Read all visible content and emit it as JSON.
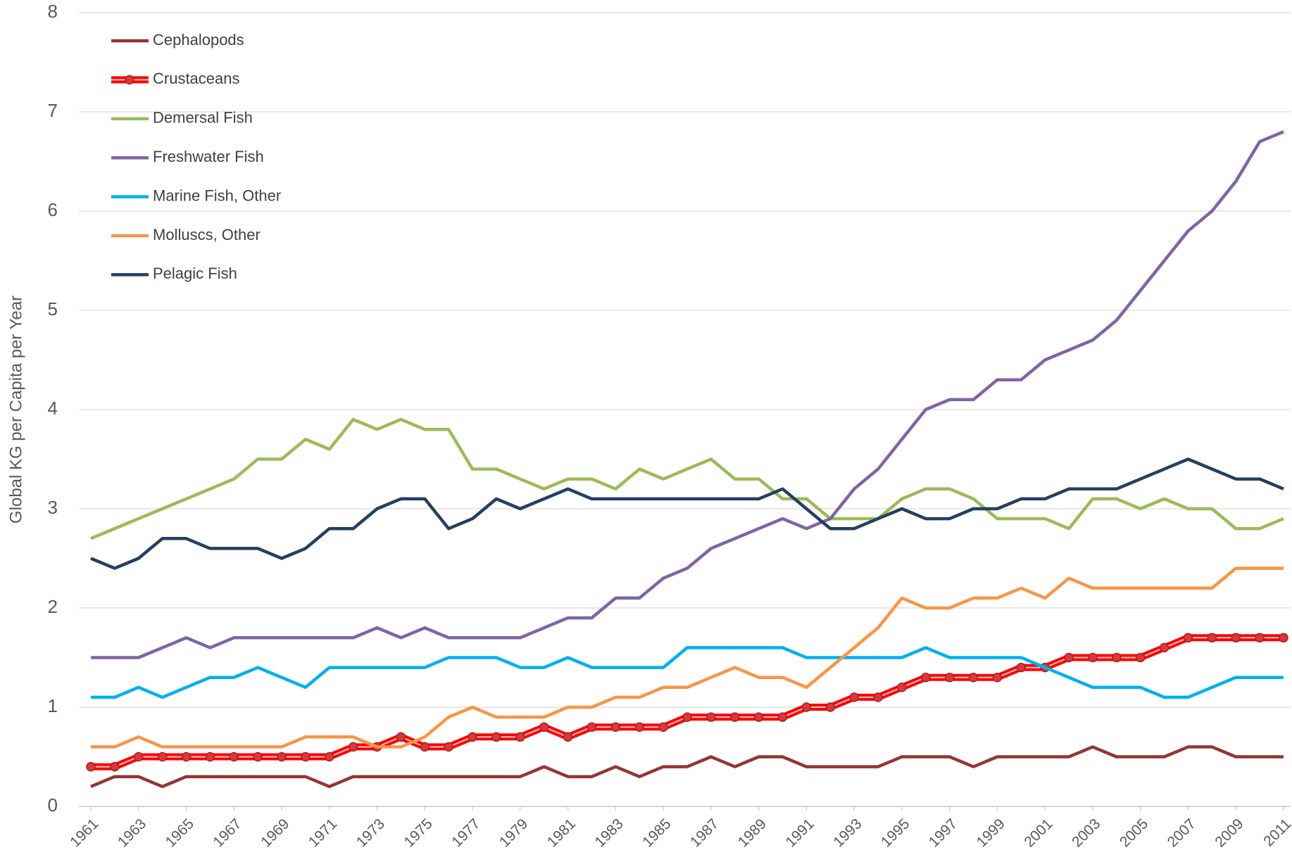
{
  "chart_data": {
    "type": "line",
    "ylabel": "Global KG per Capita per Year",
    "x": [
      1961,
      1962,
      1963,
      1964,
      1965,
      1966,
      1967,
      1968,
      1969,
      1970,
      1971,
      1972,
      1973,
      1974,
      1975,
      1976,
      1977,
      1978,
      1979,
      1980,
      1981,
      1982,
      1983,
      1984,
      1985,
      1986,
      1987,
      1988,
      1989,
      1990,
      1991,
      1992,
      1993,
      1994,
      1995,
      1996,
      1997,
      1998,
      1999,
      2000,
      2001,
      2002,
      2003,
      2004,
      2005,
      2006,
      2007,
      2008,
      2009,
      2010,
      2011
    ],
    "xlim": [
      1961,
      2011
    ],
    "xticks": [
      1961,
      1963,
      1965,
      1967,
      1969,
      1971,
      1973,
      1975,
      1977,
      1979,
      1981,
      1983,
      1985,
      1987,
      1989,
      1991,
      1993,
      1995,
      1997,
      1999,
      2001,
      2003,
      2005,
      2007,
      2009,
      2011
    ],
    "ylim": [
      0,
      8
    ],
    "yticks": [
      0,
      1,
      2,
      3,
      4,
      5,
      6,
      7,
      8
    ],
    "grid": true,
    "legend": "top-left",
    "series": [
      {
        "name": "Cephalopods",
        "color": "#943634",
        "values": [
          0.2,
          0.3,
          0.3,
          0.2,
          0.3,
          0.3,
          0.3,
          0.3,
          0.3,
          0.3,
          0.2,
          0.3,
          0.3,
          0.3,
          0.3,
          0.3,
          0.3,
          0.3,
          0.3,
          0.4,
          0.3,
          0.3,
          0.4,
          0.3,
          0.4,
          0.4,
          0.5,
          0.4,
          0.5,
          0.5,
          0.4,
          0.4,
          0.4,
          0.4,
          0.5,
          0.5,
          0.5,
          0.4,
          0.5,
          0.5,
          0.5,
          0.5,
          0.6,
          0.5,
          0.5,
          0.5,
          0.6,
          0.6,
          0.5,
          0.5,
          0.5
        ]
      },
      {
        "name": "Crustaceans",
        "color": "#ff0000",
        "marker": "circle",
        "values": [
          0.4,
          0.4,
          0.5,
          0.5,
          0.5,
          0.5,
          0.5,
          0.5,
          0.5,
          0.5,
          0.5,
          0.6,
          0.6,
          0.7,
          0.6,
          0.6,
          0.7,
          0.7,
          0.7,
          0.8,
          0.7,
          0.8,
          0.8,
          0.8,
          0.8,
          0.9,
          0.9,
          0.9,
          0.9,
          0.9,
          1.0,
          1.0,
          1.1,
          1.1,
          1.2,
          1.3,
          1.3,
          1.3,
          1.3,
          1.4,
          1.4,
          1.5,
          1.5,
          1.5,
          1.5,
          1.6,
          1.7,
          1.7,
          1.7,
          1.7,
          1.7
        ]
      },
      {
        "name": "Demersal Fish",
        "color": "#9bbb59",
        "values": [
          2.7,
          2.8,
          2.9,
          3.0,
          3.1,
          3.2,
          3.3,
          3.5,
          3.5,
          3.7,
          3.6,
          3.9,
          3.8,
          3.9,
          3.8,
          3.8,
          3.4,
          3.4,
          3.3,
          3.2,
          3.3,
          3.3,
          3.2,
          3.4,
          3.3,
          3.4,
          3.5,
          3.3,
          3.3,
          3.1,
          3.1,
          2.9,
          2.9,
          2.9,
          3.1,
          3.2,
          3.2,
          3.1,
          2.9,
          2.9,
          2.9,
          2.8,
          3.1,
          3.1,
          3.0,
          3.1,
          3.0,
          3.0,
          2.8,
          2.8,
          2.9
        ]
      },
      {
        "name": "Freshwater Fish",
        "color": "#8064a2",
        "values": [
          1.5,
          1.5,
          1.5,
          1.6,
          1.7,
          1.6,
          1.7,
          1.7,
          1.7,
          1.7,
          1.7,
          1.7,
          1.8,
          1.7,
          1.8,
          1.7,
          1.7,
          1.7,
          1.7,
          1.8,
          1.9,
          1.9,
          2.1,
          2.1,
          2.3,
          2.4,
          2.6,
          2.7,
          2.8,
          2.9,
          2.8,
          2.9,
          3.2,
          3.4,
          3.7,
          4.0,
          4.1,
          4.1,
          4.3,
          4.3,
          4.5,
          4.6,
          4.7,
          4.9,
          5.2,
          5.5,
          5.8,
          6.0,
          6.3,
          6.7,
          6.8
        ]
      },
      {
        "name": "Marine Fish, Other",
        "color": "#00b0f0",
        "values": [
          1.1,
          1.1,
          1.2,
          1.1,
          1.2,
          1.3,
          1.3,
          1.4,
          1.3,
          1.2,
          1.4,
          1.4,
          1.4,
          1.4,
          1.4,
          1.5,
          1.5,
          1.5,
          1.4,
          1.4,
          1.5,
          1.4,
          1.4,
          1.4,
          1.4,
          1.6,
          1.6,
          1.6,
          1.6,
          1.6,
          1.5,
          1.5,
          1.5,
          1.5,
          1.5,
          1.6,
          1.5,
          1.5,
          1.5,
          1.5,
          1.4,
          1.3,
          1.2,
          1.2,
          1.2,
          1.1,
          1.1,
          1.2,
          1.3,
          1.3,
          1.3
        ]
      },
      {
        "name": "Molluscs, Other",
        "color": "#f79646",
        "values": [
          0.6,
          0.6,
          0.7,
          0.6,
          0.6,
          0.6,
          0.6,
          0.6,
          0.6,
          0.7,
          0.7,
          0.7,
          0.6,
          0.6,
          0.7,
          0.9,
          1.0,
          0.9,
          0.9,
          0.9,
          1.0,
          1.0,
          1.1,
          1.1,
          1.2,
          1.2,
          1.3,
          1.4,
          1.3,
          1.3,
          1.2,
          1.4,
          1.6,
          1.8,
          2.1,
          2.0,
          2.0,
          2.1,
          2.1,
          2.2,
          2.1,
          2.3,
          2.2,
          2.2,
          2.2,
          2.2,
          2.2,
          2.2,
          2.4,
          2.4,
          2.4
        ]
      },
      {
        "name": "Pelagic Fish",
        "color": "#243f60",
        "values": [
          2.5,
          2.4,
          2.5,
          2.7,
          2.7,
          2.6,
          2.6,
          2.6,
          2.5,
          2.6,
          2.8,
          2.8,
          3.0,
          3.1,
          3.1,
          2.8,
          2.9,
          3.1,
          3.0,
          3.1,
          3.2,
          3.1,
          3.1,
          3.1,
          3.1,
          3.1,
          3.1,
          3.1,
          3.1,
          3.2,
          3.0,
          2.8,
          2.8,
          2.9,
          3.0,
          2.9,
          2.9,
          3.0,
          3.0,
          3.1,
          3.1,
          3.2,
          3.2,
          3.2,
          3.3,
          3.4,
          3.5,
          3.4,
          3.3,
          3.3,
          3.2
        ]
      }
    ]
  }
}
